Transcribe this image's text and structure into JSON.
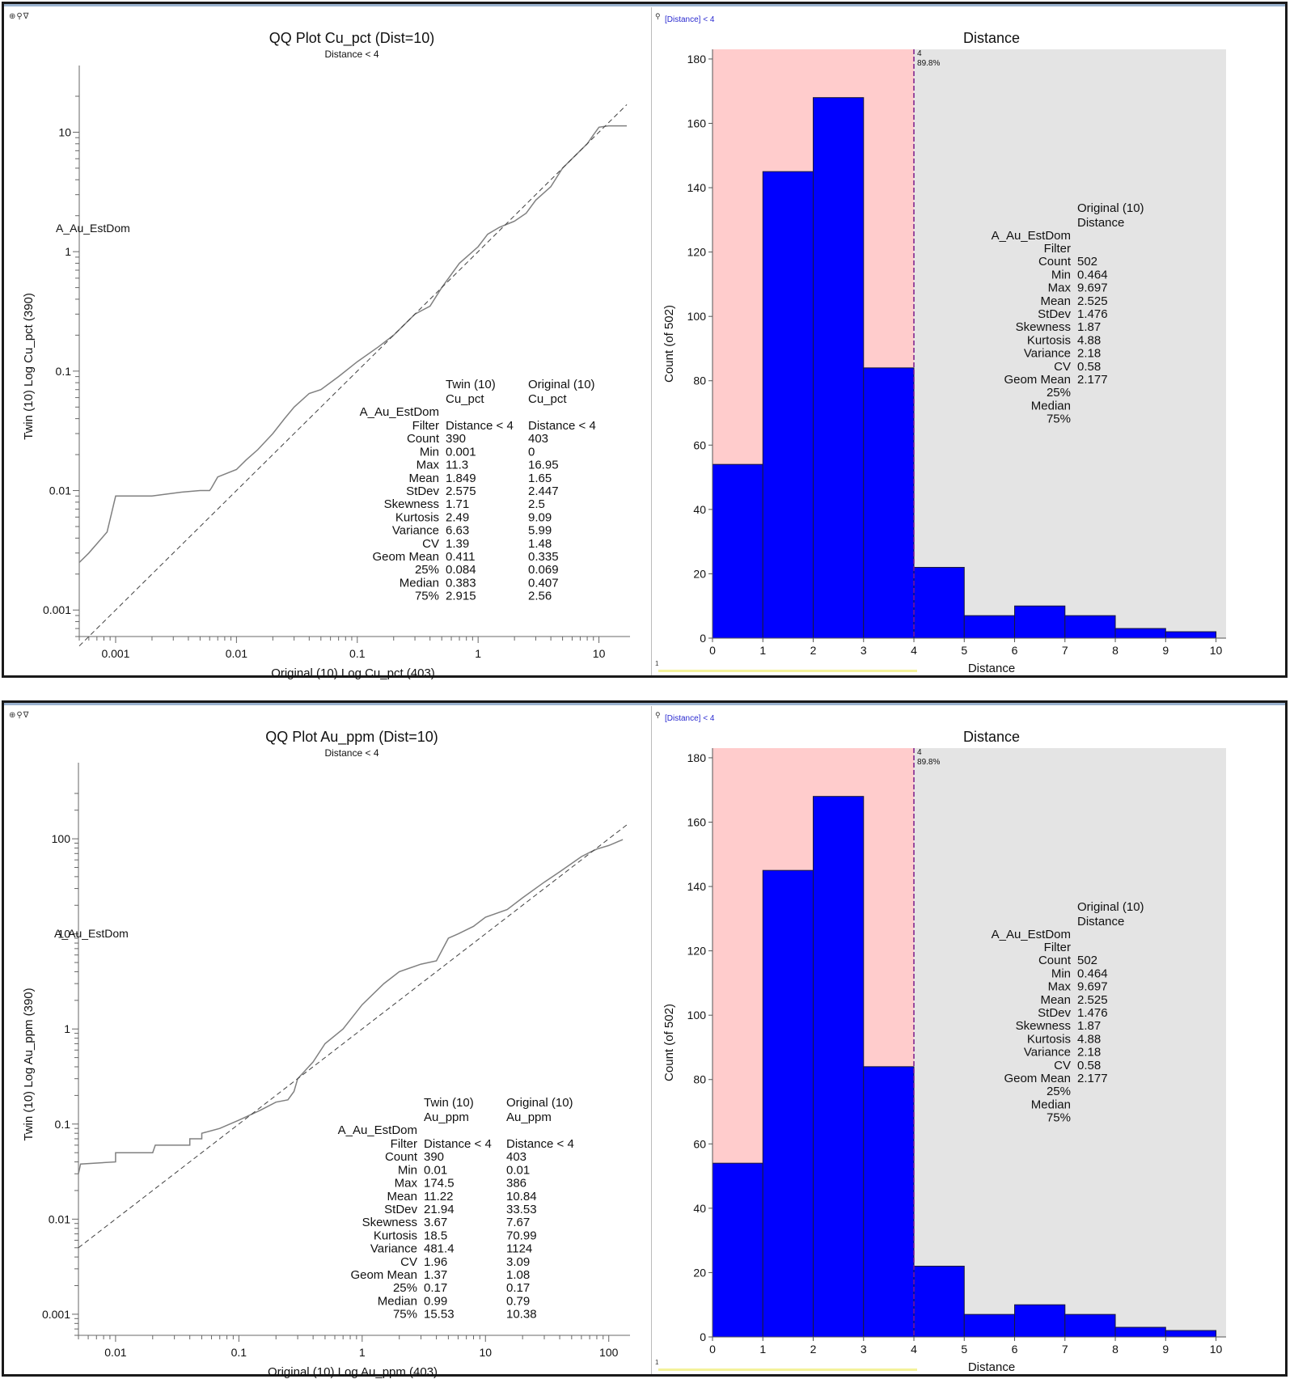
{
  "panels": [
    {
      "qq": {
        "title": "QQ Plot Cu_pct (Dist=10)",
        "subtitle": "Distance < 4",
        "xlabel": "Original (10) Log Cu_pct (403)",
        "ylabel": "Twin (10) Log  Cu_pct (390)",
        "domain_label": "A_Au_EstDom",
        "toolbar_icons": "⊕⚲∇",
        "stats": {
          "col_headers": [
            [
              "Twin (10)",
              "Cu_pct"
            ],
            [
              "Original (10)",
              "Cu_pct"
            ]
          ],
          "domain": "A_Au_EstDom",
          "rows": [
            {
              "label": "Filter",
              "twin": "Distance < 4",
              "original": "Distance < 4"
            },
            {
              "label": "Count",
              "twin": "390",
              "original": "403"
            },
            {
              "label": "Min",
              "twin": "0.001",
              "original": "0"
            },
            {
              "label": "Max",
              "twin": "11.3",
              "original": "16.95"
            },
            {
              "label": "Mean",
              "twin": "1.849",
              "original": "1.65"
            },
            {
              "label": "StDev",
              "twin": "2.575",
              "original": "2.447"
            },
            {
              "label": "Skewness",
              "twin": "1.71",
              "original": "2.5"
            },
            {
              "label": "Kurtosis",
              "twin": "2.49",
              "original": "9.09"
            },
            {
              "label": "Variance",
              "twin": "6.63",
              "original": "5.99"
            },
            {
              "label": "CV",
              "twin": "1.39",
              "original": "1.48"
            },
            {
              "label": "Geom Mean",
              "twin": "0.411",
              "original": "0.335"
            },
            {
              "label": "25%",
              "twin": "0.084",
              "original": "0.069"
            },
            {
              "label": "Median",
              "twin": "0.383",
              "original": "0.407"
            },
            {
              "label": "75%",
              "twin": "2.915",
              "original": "2.56"
            }
          ]
        }
      },
      "hist": {
        "filter_label": "[Distance] < 4",
        "title": "Distance",
        "xlabel": "Distance",
        "ylabel": "Count (of 502)",
        "cutoff_label": "4",
        "cutoff_pct": "89.8%",
        "stats": {
          "col_headers": [
            "Original (10)",
            "Distance"
          ],
          "domain": "A_Au_EstDom",
          "rows": [
            {
              "label": "Filter",
              "value": ""
            },
            {
              "label": "Count",
              "value": "502"
            },
            {
              "label": "Min",
              "value": "0.464"
            },
            {
              "label": "Max",
              "value": "9.697"
            },
            {
              "label": "Mean",
              "value": "2.525"
            },
            {
              "label": "StDev",
              "value": "1.476"
            },
            {
              "label": "Skewness",
              "value": "1.87"
            },
            {
              "label": "Kurtosis",
              "value": "4.88"
            },
            {
              "label": "Variance",
              "value": "2.18"
            },
            {
              "label": "CV",
              "value": "0.58"
            },
            {
              "label": "Geom Mean",
              "value": "2.177"
            },
            {
              "label": "25%",
              "value": ""
            },
            {
              "label": "Median",
              "value": ""
            },
            {
              "label": "75%",
              "value": ""
            }
          ]
        },
        "bottom_num": "1"
      }
    },
    {
      "qq": {
        "title": "QQ Plot Au_ppm (Dist=10)",
        "subtitle": "Distance < 4",
        "xlabel": "Original (10) Log Au_ppm (403)",
        "ylabel": "Twin (10) Log  Au_ppm (390)",
        "domain_label": "A_Au_EstDom",
        "toolbar_icons": "⊕⚲∇",
        "stats": {
          "col_headers": [
            [
              "Twin (10)",
              "Au_ppm"
            ],
            [
              "Original (10)",
              "Au_ppm"
            ]
          ],
          "domain": "A_Au_EstDom",
          "rows": [
            {
              "label": "Filter",
              "twin": "Distance < 4",
              "original": "Distance < 4"
            },
            {
              "label": "Count",
              "twin": "390",
              "original": "403"
            },
            {
              "label": "Min",
              "twin": "0.01",
              "original": "0.01"
            },
            {
              "label": "Max",
              "twin": "174.5",
              "original": "386"
            },
            {
              "label": "Mean",
              "twin": "11.22",
              "original": "10.84"
            },
            {
              "label": "StDev",
              "twin": "21.94",
              "original": "33.53"
            },
            {
              "label": "Skewness",
              "twin": "3.67",
              "original": "7.67"
            },
            {
              "label": "Kurtosis",
              "twin": "18.5",
              "original": "70.99"
            },
            {
              "label": "Variance",
              "twin": "481.4",
              "original": "1124"
            },
            {
              "label": "CV",
              "twin": "1.96",
              "original": "3.09"
            },
            {
              "label": "Geom Mean",
              "twin": "1.37",
              "original": "1.08"
            },
            {
              "label": "25%",
              "twin": "0.17",
              "original": "0.17"
            },
            {
              "label": "Median",
              "twin": "0.99",
              "original": "0.79"
            },
            {
              "label": "75%",
              "twin": "15.53",
              "original": "10.38"
            }
          ]
        }
      },
      "hist": {
        "filter_label": "[Distance] < 4",
        "title": "Distance",
        "xlabel": "Distance",
        "ylabel": "Count (of 502)",
        "cutoff_label": "4",
        "cutoff_pct": "89.8%",
        "stats": {
          "col_headers": [
            "Original (10)",
            "Distance"
          ],
          "domain": "A_Au_EstDom",
          "rows": [
            {
              "label": "Filter",
              "value": ""
            },
            {
              "label": "Count",
              "value": "502"
            },
            {
              "label": "Min",
              "value": "0.464"
            },
            {
              "label": "Max",
              "value": "9.697"
            },
            {
              "label": "Mean",
              "value": "2.525"
            },
            {
              "label": "StDev",
              "value": "1.476"
            },
            {
              "label": "Skewness",
              "value": "1.87"
            },
            {
              "label": "Kurtosis",
              "value": "4.88"
            },
            {
              "label": "Variance",
              "value": "2.18"
            },
            {
              "label": "CV",
              "value": "0.58"
            },
            {
              "label": "Geom Mean",
              "value": "2.177"
            },
            {
              "label": "25%",
              "value": ""
            },
            {
              "label": "Median",
              "value": ""
            },
            {
              "label": "75%",
              "value": ""
            }
          ]
        },
        "bottom_num": "1"
      }
    }
  ],
  "chart_data": [
    {
      "type": "line",
      "title": "QQ Plot Cu_pct (Dist=10)",
      "subtitle": "Distance < 4",
      "xlabel": "Original (10) Log Cu_pct (403)",
      "ylabel": "Twin (10) Log  Cu_pct (390)",
      "xscale": "log",
      "yscale": "log",
      "xlim": [
        0.0005,
        17
      ],
      "ylim": [
        0.0006,
        20
      ],
      "xticks": [
        0.001,
        0.01,
        0.1,
        1,
        10
      ],
      "xtick_labels": [
        "0.001",
        "0.01",
        "0.1",
        "1",
        "10"
      ],
      "yticks": [
        0.001,
        0.01,
        0.1,
        1,
        10
      ],
      "ytick_labels": [
        "0.001",
        "0.01",
        "0.1",
        "1",
        "10"
      ],
      "series": [
        {
          "name": "QQ",
          "style": "solid",
          "color": "#808080",
          "x": [
            0.0005,
            0.0006,
            0.00085,
            0.001,
            0.002,
            0.0035,
            0.005,
            0.006,
            0.0062,
            0.007,
            0.01,
            0.012,
            0.015,
            0.02,
            0.025,
            0.03,
            0.04,
            0.05,
            0.07,
            0.1,
            0.15,
            0.2,
            0.3,
            0.4,
            0.5,
            0.7,
            0.9,
            1.0,
            1.2,
            1.5,
            2,
            2.5,
            3,
            4,
            5,
            6,
            7,
            8,
            9,
            10,
            12,
            17
          ],
          "y": [
            0.0025,
            0.003,
            0.0045,
            0.009,
            0.009,
            0.0097,
            0.01,
            0.01,
            0.0105,
            0.013,
            0.015,
            0.018,
            0.022,
            0.03,
            0.04,
            0.05,
            0.065,
            0.07,
            0.09,
            0.12,
            0.16,
            0.2,
            0.3,
            0.35,
            0.5,
            0.8,
            1.0,
            1.1,
            1.4,
            1.6,
            1.8,
            2.1,
            2.7,
            3.5,
            5,
            6,
            7,
            8,
            9.5,
            11,
            11.3,
            11.3
          ]
        },
        {
          "name": "1:1 line",
          "style": "dashed",
          "color": "#404040",
          "x": [
            0.0005,
            17
          ],
          "y": [
            0.0005,
            17
          ]
        }
      ],
      "annotation": "A_Au_EstDom"
    },
    {
      "type": "bar",
      "title": "Distance",
      "xlabel": "Distance",
      "ylabel": "Count (of 502)",
      "bin_edges": [
        0,
        1,
        2,
        3,
        4,
        5,
        6,
        7,
        8,
        9,
        10
      ],
      "categories": [
        "0-1",
        "1-2",
        "2-3",
        "3-4",
        "4-5",
        "5-6",
        "6-7",
        "7-8",
        "8-9",
        "9-10"
      ],
      "values": [
        54,
        145,
        168,
        84,
        22,
        7,
        10,
        7,
        3,
        2
      ],
      "xlim": [
        0,
        10.2
      ],
      "ylim": [
        0,
        183
      ],
      "xticks": [
        0,
        1,
        2,
        3,
        4,
        5,
        6,
        7,
        8,
        9,
        10
      ],
      "yticks": [
        0,
        20,
        40,
        60,
        80,
        100,
        120,
        140,
        160,
        180
      ],
      "cutoff": {
        "x": 4,
        "label": "4",
        "pct": "89.8%"
      },
      "colors": {
        "bar": "#0000ff",
        "filtered_region": "#ffcccc",
        "excluded_region": "#e4e4e4",
        "cutoff_line": "#7a1a8a"
      }
    },
    {
      "type": "line",
      "title": "QQ Plot Au_ppm (Dist=10)",
      "subtitle": "Distance < 4",
      "xlabel": "Original (10) Log Au_ppm (403)",
      "ylabel": "Twin (10) Log  Au_ppm (390)",
      "xscale": "log",
      "yscale": "log",
      "xlim": [
        0.005,
        140
      ],
      "ylim": [
        0.0006,
        300
      ],
      "xticks": [
        0.01,
        0.1,
        1,
        10,
        100
      ],
      "xtick_labels": [
        "0.01",
        "0.1",
        "1",
        "10",
        "100"
      ],
      "yticks": [
        0.001,
        0.01,
        0.1,
        1,
        10,
        100
      ],
      "ytick_labels": [
        "0.001",
        "0.01",
        "0.1",
        "1",
        "10",
        "100"
      ],
      "series": [
        {
          "name": "QQ",
          "style": "solid",
          "color": "#808080",
          "x": [
            0.005,
            0.0052,
            0.01,
            0.01,
            0.02,
            0.021,
            0.04,
            0.04,
            0.05,
            0.05,
            0.07,
            0.1,
            0.15,
            0.2,
            0.25,
            0.28,
            0.3,
            0.4,
            0.5,
            0.7,
            1,
            1.5,
            2,
            3,
            4,
            5,
            6,
            8,
            10,
            15,
            20,
            30,
            40,
            50,
            60,
            70,
            80,
            100,
            130
          ],
          "y": [
            0.03,
            0.038,
            0.04,
            0.05,
            0.05,
            0.06,
            0.06,
            0.07,
            0.07,
            0.08,
            0.09,
            0.11,
            0.14,
            0.17,
            0.18,
            0.22,
            0.3,
            0.45,
            0.7,
            1.0,
            1.8,
            3.0,
            4.0,
            4.8,
            5.2,
            9.0,
            10.0,
            12.0,
            15.0,
            18,
            24,
            35,
            45,
            55,
            65,
            72,
            78,
            85,
            98
          ]
        },
        {
          "name": "1:1 line",
          "style": "dashed",
          "color": "#404040",
          "x": [
            0.005,
            140
          ],
          "y": [
            0.005,
            140
          ]
        }
      ],
      "annotation": "A_Au_EstDom"
    },
    {
      "type": "bar",
      "title": "Distance",
      "xlabel": "Distance",
      "ylabel": "Count (of 502)",
      "bin_edges": [
        0,
        1,
        2,
        3,
        4,
        5,
        6,
        7,
        8,
        9,
        10
      ],
      "categories": [
        "0-1",
        "1-2",
        "2-3",
        "3-4",
        "4-5",
        "5-6",
        "6-7",
        "7-8",
        "8-9",
        "9-10"
      ],
      "values": [
        54,
        145,
        168,
        84,
        22,
        7,
        10,
        7,
        3,
        2
      ],
      "xlim": [
        0,
        10.2
      ],
      "ylim": [
        0,
        183
      ],
      "xticks": [
        0,
        1,
        2,
        3,
        4,
        5,
        6,
        7,
        8,
        9,
        10
      ],
      "yticks": [
        0,
        20,
        40,
        60,
        80,
        100,
        120,
        140,
        160,
        180
      ],
      "cutoff": {
        "x": 4,
        "label": "4",
        "pct": "89.8%"
      },
      "colors": {
        "bar": "#0000ff",
        "filtered_region": "#ffcccc",
        "excluded_region": "#e4e4e4",
        "cutoff_line": "#7a1a8a"
      }
    }
  ]
}
